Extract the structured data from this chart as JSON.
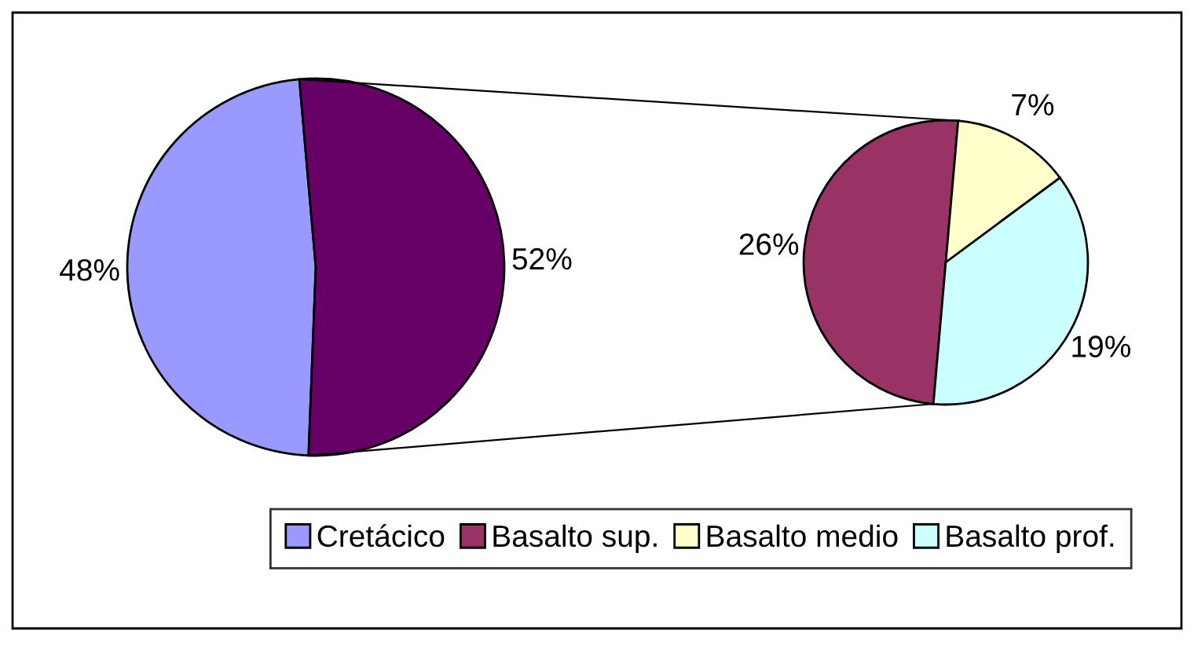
{
  "chart_data": [
    {
      "type": "pie",
      "categories": [
        "Cretácico",
        null
      ],
      "values": [
        48,
        52
      ],
      "colors": [
        "#9999ff",
        "#660066"
      ],
      "value_labels": [
        "48%",
        "52%"
      ],
      "legend": "bottom"
    },
    {
      "type": "pie",
      "categories": [
        "Basalto sup.",
        "Basalto medio",
        "Basalto prof."
      ],
      "values": [
        26,
        7,
        19
      ],
      "colors": [
        "#993366",
        "#ffffcc",
        "#ccffff"
      ],
      "value_labels": [
        "26%",
        "7%",
        "19%"
      ],
      "legend": "bottom"
    }
  ]
}
